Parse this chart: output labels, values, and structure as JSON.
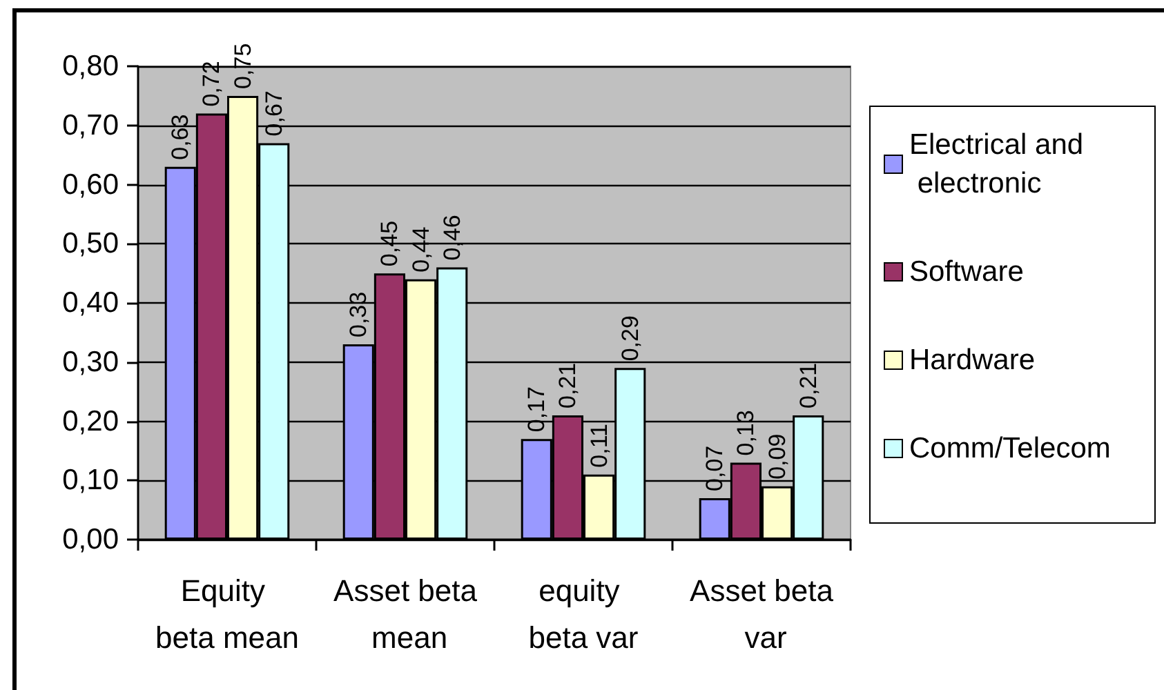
{
  "chart_data": {
    "type": "bar",
    "categories": [
      "Equity beta mean",
      "Asset beta mean",
      "equity beta var",
      "Asset beta var"
    ],
    "series": [
      {
        "name": "Electrical and electronic",
        "color": "#9999ff",
        "values": [
          0.63,
          0.33,
          0.17,
          0.07
        ],
        "value_labels": [
          "0,63",
          "0,33",
          "0,17",
          "0,07"
        ]
      },
      {
        "name": "Software",
        "color": "#993366",
        "values": [
          0.72,
          0.45,
          0.21,
          0.13
        ],
        "value_labels": [
          "0,72",
          "0,45",
          "0,21",
          "0,13"
        ]
      },
      {
        "name": "Hardware",
        "color": "#ffffcc",
        "values": [
          0.75,
          0.44,
          0.11,
          0.09
        ],
        "value_labels": [
          "0,75",
          "0,44",
          "0,11",
          "0,09"
        ]
      },
      {
        "name": "Comm/Telecom",
        "color": "#ccffff",
        "values": [
          0.67,
          0.46,
          0.29,
          0.21
        ],
        "value_labels": [
          "0,67",
          "0,46",
          "0,29",
          "0,21"
        ]
      }
    ],
    "ylim": [
      0,
      0.8
    ],
    "yticks": [
      {
        "value": 0,
        "label": "0,00"
      },
      {
        "value": 0.1,
        "label": "0,10"
      },
      {
        "value": 0.2,
        "label": "0,20"
      },
      {
        "value": 0.3,
        "label": "0,30"
      },
      {
        "value": 0.4,
        "label": "0,40"
      },
      {
        "value": 0.5,
        "label": "0,50"
      },
      {
        "value": 0.6,
        "label": "0,60"
      },
      {
        "value": 0.7,
        "label": "0,70"
      },
      {
        "value": 0.8,
        "label": "0,80"
      }
    ],
    "grid": "y",
    "legend": "right"
  }
}
